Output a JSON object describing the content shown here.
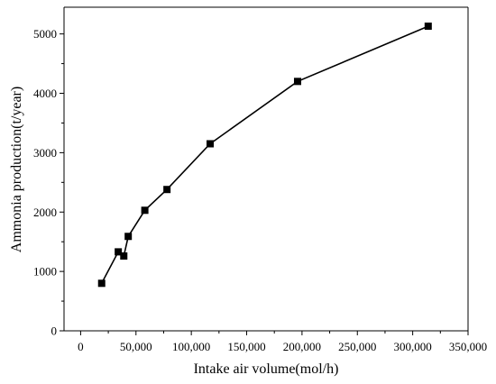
{
  "chart_data": {
    "type": "line",
    "xlabel": "Intake air volume(mol/h)",
    "ylabel": "Ammonia production(t/year)",
    "xlim": [
      -15000,
      350000
    ],
    "ylim": [
      0,
      5450
    ],
    "x_ticks": [
      0,
      50000,
      100000,
      150000,
      200000,
      250000,
      300000,
      350000
    ],
    "x_tick_labels": [
      "0",
      "50,000",
      "100,000",
      "150,000",
      "200,000",
      "250,000",
      "300,000",
      "350,000"
    ],
    "y_ticks": [
      0,
      1000,
      2000,
      3000,
      4000,
      5000
    ],
    "y_tick_labels": [
      "0",
      "1000",
      "2000",
      "3000",
      "4000",
      "5000"
    ],
    "grid": false,
    "marker": "square",
    "series": [
      {
        "x": [
          19000,
          34000,
          39000,
          43000,
          58000,
          78000,
          117000,
          196000,
          314000
        ],
        "y": [
          800,
          1330,
          1260,
          1590,
          2030,
          2380,
          3150,
          4200,
          5130
        ]
      }
    ]
  }
}
